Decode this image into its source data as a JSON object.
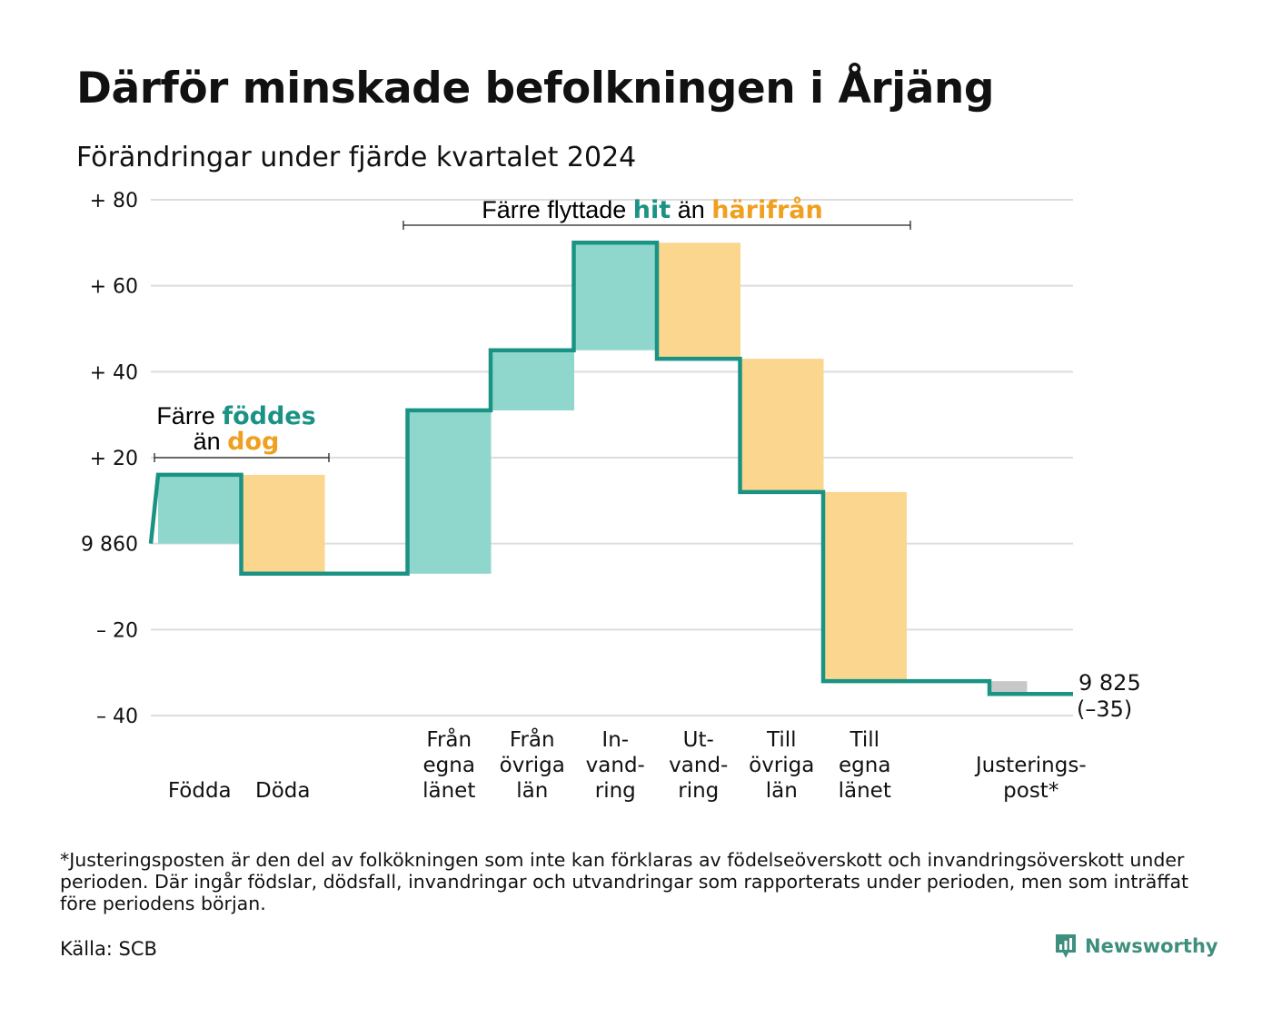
{
  "title": "Därför minskade befolkningen i Årjäng",
  "subtitle": "Förändringar under fjärde kvartalet 2024",
  "colors": {
    "increase": "#8fd6cc",
    "decrease": "#fad68e",
    "adjustment": "#c8c8c8",
    "line": "#1a9384",
    "teal_text": "#1a9384",
    "orange_text": "#f0a020",
    "grid": "#dddddd",
    "brand": "#3f8f7e"
  },
  "chart_data": {
    "type": "waterfall",
    "baseline": 9860,
    "ylim": [
      -40,
      80
    ],
    "yticks": [
      {
        "value": 80,
        "label": "+ 80"
      },
      {
        "value": 60,
        "label": "+ 60"
      },
      {
        "value": 40,
        "label": "+ 40"
      },
      {
        "value": 20,
        "label": "+ 20"
      },
      {
        "value": 0,
        "label": "9 860"
      },
      {
        "value": -20,
        "label": "– 20"
      },
      {
        "value": -40,
        "label": "– 40"
      }
    ],
    "steps": [
      {
        "label_lines": [
          "Födda"
        ],
        "change": 16,
        "kind": "increase",
        "slot": 0
      },
      {
        "label_lines": [
          "Döda"
        ],
        "change": -23,
        "kind": "decrease",
        "slot": 1
      },
      {
        "label_lines": [
          "Från",
          "egna",
          "länet"
        ],
        "change": 38,
        "kind": "increase",
        "slot": 3
      },
      {
        "label_lines": [
          "Från",
          "övriga",
          "län"
        ],
        "change": 14,
        "kind": "increase",
        "slot": 4
      },
      {
        "label_lines": [
          "In-",
          "vand-",
          "ring"
        ],
        "change": 25,
        "kind": "increase",
        "slot": 5
      },
      {
        "label_lines": [
          "Ut-",
          "vand-",
          "ring"
        ],
        "change": -27,
        "kind": "decrease",
        "slot": 6
      },
      {
        "label_lines": [
          "Till",
          "övriga",
          "län"
        ],
        "change": -31,
        "kind": "decrease",
        "slot": 7
      },
      {
        "label_lines": [
          "Till",
          "egna",
          "länet"
        ],
        "change": -44,
        "kind": "decrease",
        "slot": 8
      },
      {
        "label_lines": [
          "Justerings-",
          "post*"
        ],
        "change": -3,
        "kind": "adjustment",
        "slot": 10
      }
    ],
    "end_value": "9 825",
    "end_change": "(–35)",
    "annotations": [
      {
        "group": "births",
        "line1": "Färre ",
        "highlight1": "föddes",
        "line2": "än ",
        "highlight2": "dog"
      },
      {
        "group": "migration",
        "line1": "Färre flyttade ",
        "highlight1": "hit",
        "mid": " än ",
        "highlight2": "härifrån"
      }
    ]
  },
  "footnote": "*Justeringsposten är den del av folkökningen som inte kan förklaras av födelseöverskott och invandringsöverskott under perioden. Där ingår födslar, dödsfall, invandringar och utvandringar som rapporterats under perioden, men som inträffat före periodens början.",
  "source": "Källa: SCB",
  "brand": {
    "name": "Newsworthy",
    "icon": "newsworthy-chart-icon"
  }
}
